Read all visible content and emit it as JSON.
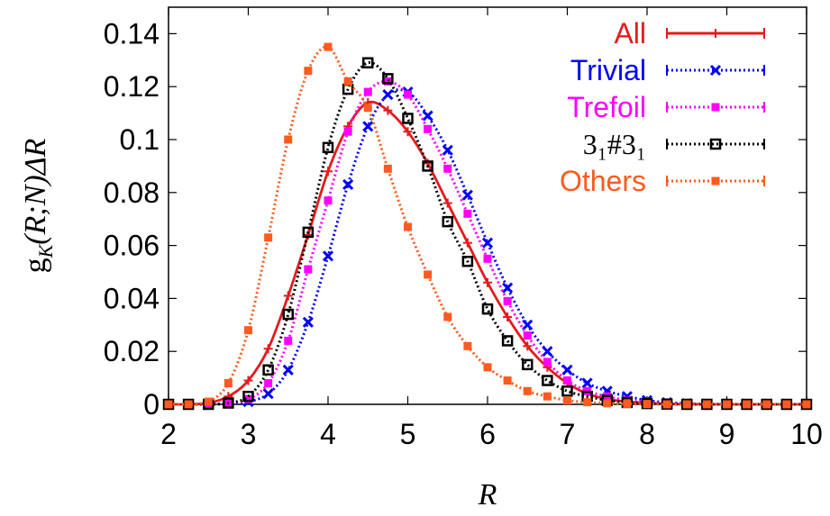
{
  "chart_data": {
    "type": "line",
    "xlabel": "R",
    "ylabel": "g_K(R;N)ΔR",
    "xlim": [
      2,
      10
    ],
    "ylim": [
      0,
      0.15
    ],
    "xticks": [
      "2",
      "3",
      "4",
      "5",
      "6",
      "7",
      "8",
      "9",
      "10"
    ],
    "yticks": [
      "0",
      "0.02",
      "0.04",
      "0.06",
      "0.08",
      "0.1",
      "0.12",
      "0.14"
    ],
    "grid": false,
    "legend_position": "top-right",
    "series": [
      {
        "name": "All",
        "color": "#e41a1c",
        "line_style": "solid",
        "marker": "plus",
        "x": [
          2.0,
          2.25,
          2.5,
          2.75,
          3.0,
          3.25,
          3.5,
          3.75,
          4.0,
          4.25,
          4.5,
          4.75,
          5.0,
          5.25,
          5.5,
          5.75,
          6.0,
          6.25,
          6.5,
          6.75,
          7.0,
          7.25,
          7.5,
          7.75,
          8.0,
          8.25,
          8.5,
          8.75,
          9.0,
          9.25,
          9.5,
          9.75,
          10.0
        ],
        "y": [
          0.0,
          0.0,
          0.0005,
          0.003,
          0.009,
          0.021,
          0.041,
          0.064,
          0.088,
          0.105,
          0.114,
          0.111,
          0.103,
          0.091,
          0.076,
          0.061,
          0.046,
          0.033,
          0.022,
          0.014,
          0.008,
          0.004,
          0.002,
          0.001,
          0.0005,
          0.0002,
          0.0,
          0.0,
          0.0,
          0.0,
          0.0,
          0.0,
          0.0
        ]
      },
      {
        "name": "Trivial",
        "color": "#0000ff",
        "line_style": "dotted",
        "marker": "x",
        "x": [
          2.0,
          2.25,
          2.5,
          2.75,
          3.0,
          3.25,
          3.5,
          3.75,
          4.0,
          4.25,
          4.5,
          4.75,
          5.0,
          5.25,
          5.5,
          5.75,
          6.0,
          6.25,
          6.5,
          6.75,
          7.0,
          7.25,
          7.5,
          7.75,
          8.0,
          8.25,
          8.5,
          8.75,
          9.0,
          9.25,
          9.5,
          9.75,
          10.0
        ],
        "y": [
          0.0,
          0.0,
          0.0,
          0.0003,
          0.001,
          0.004,
          0.013,
          0.031,
          0.056,
          0.083,
          0.105,
          0.117,
          0.118,
          0.109,
          0.096,
          0.079,
          0.061,
          0.044,
          0.03,
          0.02,
          0.013,
          0.008,
          0.005,
          0.003,
          0.0015,
          0.0007,
          0.0003,
          0.0001,
          0.0,
          0.0,
          0.0,
          0.0,
          0.0
        ]
      },
      {
        "name": "Trefoil",
        "color": "#ff00ff",
        "line_style": "dotted",
        "marker": "filled-square",
        "x": [
          2.0,
          2.25,
          2.5,
          2.75,
          3.0,
          3.25,
          3.5,
          3.75,
          4.0,
          4.25,
          4.5,
          4.75,
          5.0,
          5.25,
          5.5,
          5.75,
          6.0,
          6.25,
          6.5,
          6.75,
          7.0,
          7.25,
          7.5,
          7.75,
          8.0,
          8.25,
          8.5,
          8.75,
          9.0,
          9.25,
          9.5,
          9.75,
          10.0
        ],
        "y": [
          0.0,
          0.0,
          0.0,
          0.0005,
          0.002,
          0.008,
          0.024,
          0.051,
          0.077,
          0.103,
          0.118,
          0.122,
          0.117,
          0.104,
          0.089,
          0.072,
          0.055,
          0.039,
          0.026,
          0.016,
          0.009,
          0.005,
          0.003,
          0.0015,
          0.0007,
          0.0003,
          0.0001,
          0.0,
          0.0,
          0.0,
          0.0,
          0.0,
          0.0
        ]
      },
      {
        "name": "3₁#3₁",
        "color": "#000000",
        "line_style": "dotted",
        "marker": "open-square",
        "x": [
          2.0,
          2.25,
          2.5,
          2.75,
          3.0,
          3.25,
          3.5,
          3.75,
          4.0,
          4.25,
          4.5,
          4.75,
          5.0,
          5.25,
          5.5,
          5.75,
          6.0,
          6.25,
          6.5,
          6.75,
          7.0,
          7.25,
          7.5,
          7.75,
          8.0,
          8.25,
          8.5,
          8.75,
          9.0,
          9.25,
          9.5,
          9.75,
          10.0
        ],
        "y": [
          0.0,
          0.0,
          0.0,
          0.0005,
          0.003,
          0.013,
          0.034,
          0.065,
          0.097,
          0.119,
          0.129,
          0.123,
          0.108,
          0.09,
          0.069,
          0.054,
          0.036,
          0.024,
          0.015,
          0.009,
          0.005,
          0.003,
          0.0015,
          0.0007,
          0.0003,
          0.0001,
          0.0,
          0.0,
          0.0,
          0.0,
          0.0,
          0.0,
          0.0
        ]
      },
      {
        "name": "Others",
        "color": "#ff5a1f",
        "line_style": "dotted",
        "marker": "filled-square",
        "x": [
          2.0,
          2.25,
          2.5,
          2.75,
          3.0,
          3.25,
          3.5,
          3.75,
          4.0,
          4.25,
          4.5,
          4.75,
          5.0,
          5.25,
          5.5,
          5.75,
          6.0,
          6.25,
          6.5,
          6.75,
          7.0,
          7.25,
          7.5,
          7.75,
          8.0,
          8.25,
          8.5,
          8.75,
          9.0,
          9.25,
          9.5,
          9.75,
          10.0
        ],
        "y": [
          0.0,
          0.0,
          0.001,
          0.008,
          0.028,
          0.063,
          0.1,
          0.126,
          0.135,
          0.122,
          0.112,
          0.089,
          0.067,
          0.049,
          0.033,
          0.022,
          0.014,
          0.009,
          0.005,
          0.003,
          0.0015,
          0.0008,
          0.0004,
          0.0002,
          0.0001,
          0.0,
          0.0,
          0.0,
          0.0,
          0.0,
          0.0,
          0.0,
          0.0
        ]
      }
    ]
  }
}
